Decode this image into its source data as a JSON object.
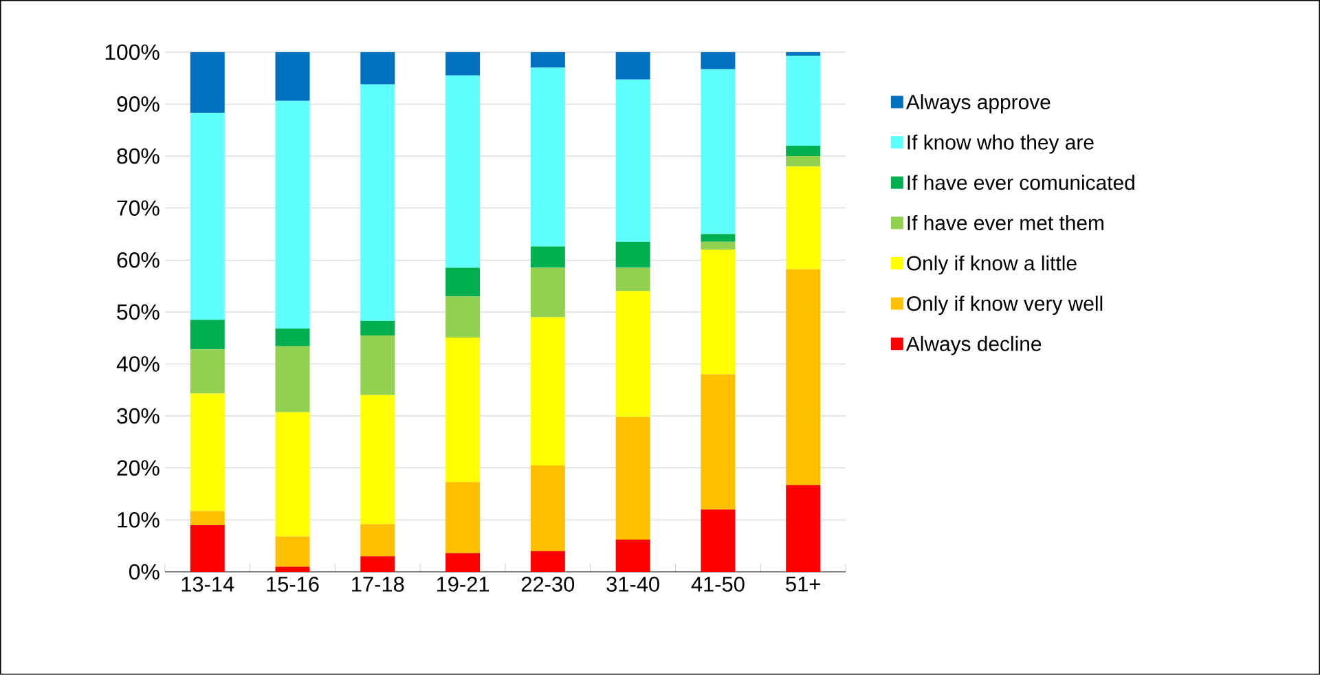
{
  "chart_data": {
    "type": "bar",
    "stacked": true,
    "categories": [
      "13-14",
      "15-16",
      "17-18",
      "19-21",
      "22-30",
      "31-40",
      "41-50",
      "51+"
    ],
    "series": [
      {
        "name": "Always decline",
        "color": "#ff0000",
        "values": [
          9,
          1,
          3,
          3.6,
          4,
          6.2,
          12,
          16.7
        ]
      },
      {
        "name": "Only if know very well",
        "color": "#ffc000",
        "values": [
          2.7,
          5.8,
          6.2,
          13.7,
          16.5,
          23.6,
          26,
          41.5
        ]
      },
      {
        "name": "Only if know a little",
        "color": "#ffff00",
        "values": [
          22.6,
          23.9,
          24.8,
          27.8,
          28.5,
          24.2,
          24,
          19.8
        ]
      },
      {
        "name": "If have ever met them",
        "color": "#92d050",
        "values": [
          8.5,
          12.7,
          11.5,
          7.9,
          9.5,
          4.5,
          1.5,
          2
        ]
      },
      {
        "name": "If have ever comunicated",
        "color": "#00b050",
        "values": [
          5.7,
          3.4,
          2.8,
          5.5,
          4.1,
          5,
          1.5,
          2
        ]
      },
      {
        "name": "If know who they are",
        "color": "#5fffff",
        "values": [
          39.8,
          43.8,
          45.5,
          37,
          34.4,
          31.2,
          31.7,
          17.3
        ]
      },
      {
        "name": "Always approve",
        "color": "#0070c0",
        "values": [
          11.7,
          9.4,
          6.2,
          4.5,
          3,
          5.3,
          3.3,
          0.7
        ]
      }
    ],
    "ylim": [
      0,
      100
    ],
    "yticks": [
      {
        "value": 0,
        "label": "0%"
      },
      {
        "value": 10,
        "label": "10%"
      },
      {
        "value": 20,
        "label": "20%"
      },
      {
        "value": 30,
        "label": "30%"
      },
      {
        "value": 40,
        "label": "40%"
      },
      {
        "value": 50,
        "label": "50%"
      },
      {
        "value": 60,
        "label": "60%"
      },
      {
        "value": 70,
        "label": "70%"
      },
      {
        "value": 80,
        "label": "80%"
      },
      {
        "value": 90,
        "label": "90%"
      },
      {
        "value": 100,
        "label": "100%"
      }
    ],
    "grid": "y",
    "legend": "right"
  }
}
